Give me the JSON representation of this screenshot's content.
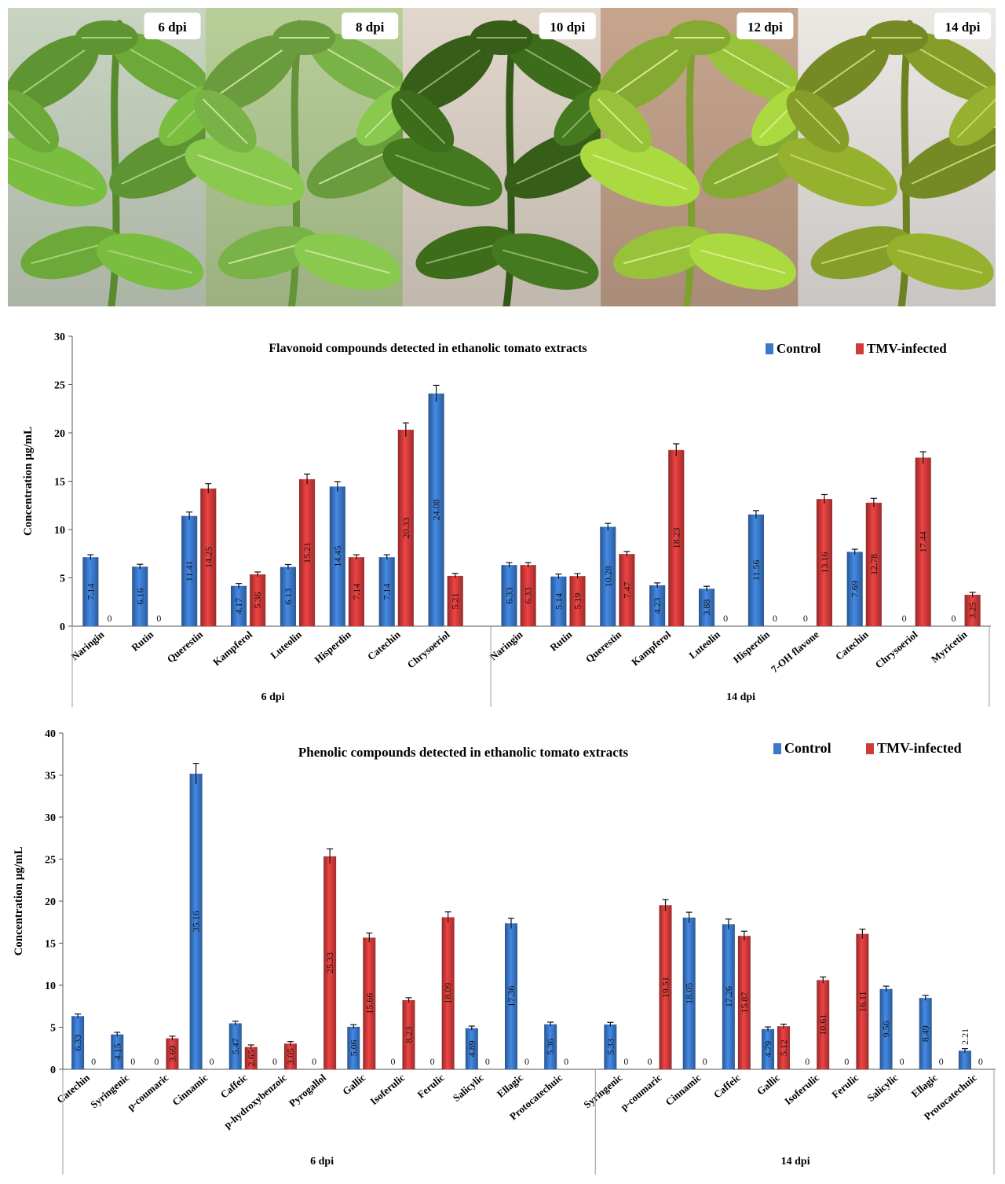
{
  "colors": {
    "control": "#3a78c9",
    "tmv": "#d13a3a"
  },
  "photos": [
    {
      "label": "6 dpi",
      "sky": "#c9d4c2",
      "leaf": "#6fae3a",
      "vein": "#a9d07a"
    },
    {
      "label": "8 dpi",
      "sky": "#b8cf98",
      "leaf": "#7db848",
      "vein": "#c8e29a"
    },
    {
      "label": "10 dpi",
      "sky": "#e2d7cc",
      "leaf": "#3f6f1c",
      "vein": "#8fae6a"
    },
    {
      "label": "12 dpi",
      "sky": "#c7a58d",
      "leaf": "#9cc83b",
      "vein": "#d8eb8a"
    },
    {
      "label": "14 dpi",
      "sky": "#ece8e4",
      "leaf": "#8aa22a",
      "vein": "#c8d56a"
    }
  ],
  "chart_data": [
    {
      "type": "bar",
      "title": "Flavonoid compounds detected in ethanolic tomato extracts",
      "ylabel": "Concentration µg/mL",
      "ylim": [
        0,
        30
      ],
      "yticks": [
        0,
        5,
        10,
        15,
        20,
        25,
        30
      ],
      "legend": {
        "position": "top-right",
        "labels": [
          "Control",
          "TMV-infected"
        ]
      },
      "groups": [
        {
          "label": "6 dpi",
          "categories": [
            "Naringin",
            "Rutin",
            "Querestin",
            "Kampferol",
            "Luteolin",
            "Hisperdin",
            "Catechin",
            "Chrysoeriol"
          ],
          "series": [
            {
              "name": "Control",
              "values": [
                7.14,
                6.16,
                11.41,
                4.17,
                6.13,
                14.45,
                7.14,
                24.08
              ]
            },
            {
              "name": "TMV-infected",
              "values": [
                0,
                0,
                14.25,
                5.36,
                15.21,
                7.14,
                20.33,
                5.21
              ]
            }
          ],
          "value_labels": {
            "Control": [
              "7.14",
              "6.16",
              "11.41",
              "4.17",
              "6.13",
              "14.45",
              "7.14",
              "24.08"
            ],
            "TMV-infected": [
              "0",
              "0",
              "14.25",
              "5.36",
              "15.21",
              "7.14",
              "20.33",
              "5.21"
            ]
          }
        },
        {
          "label": "14 dpi",
          "categories": [
            "Naringin",
            "Rutin",
            "Querestin",
            "Kampferol",
            "Luteolin",
            "Hisperdin",
            "7-OH flavone",
            "Catechin",
            "Chrysoeriol",
            "Myricetin"
          ],
          "series": [
            {
              "name": "Control",
              "values": [
                6.33,
                5.14,
                10.28,
                4.23,
                3.88,
                11.56,
                0,
                7.69,
                0,
                0
              ]
            },
            {
              "name": "TMV-infected",
              "values": [
                6.33,
                5.19,
                7.47,
                18.23,
                0,
                0,
                13.16,
                12.78,
                17.44,
                3.25
              ]
            }
          ],
          "value_labels": {
            "Control": [
              "6.33",
              "5.14",
              "10.28",
              "4.23",
              "3.88",
              "11.56",
              "0",
              "7.69",
              "0",
              "0"
            ],
            "TMV-infected": [
              "6.33",
              "5.19",
              "7.47",
              "18.23",
              "0",
              "0",
              "13.16",
              "12.78",
              "17.44",
              "3.25"
            ]
          }
        }
      ]
    },
    {
      "type": "bar",
      "title": "Phenolic compounds detected in ethanolic tomato extracts",
      "ylabel": "Concentration µg/mL",
      "ylim": [
        0,
        40
      ],
      "yticks": [
        0,
        5,
        10,
        15,
        20,
        25,
        30,
        35,
        40
      ],
      "legend": {
        "position": "top-right",
        "labels": [
          "Control",
          "TMV-infected"
        ]
      },
      "groups": [
        {
          "label": "6 dpi",
          "categories": [
            "Catechin",
            "Syringenic",
            "p-coumaric",
            "Cinnamic",
            "Caffeic",
            "p-hydroxybenzoic",
            "Pyrogallol",
            "Gallic",
            "Isoferulic",
            "Ferulic",
            "Salicylic",
            "Ellagic",
            "Protocatechuic"
          ],
          "series": [
            {
              "name": "Control",
              "values": [
                6.33,
                4.15,
                0,
                35.16,
                5.47,
                0,
                0,
                5.06,
                0,
                0,
                4.89,
                17.36,
                5.36
              ]
            },
            {
              "name": "TMV-infected",
              "values": [
                0,
                0,
                3.69,
                0,
                2.65,
                3.05,
                25.33,
                15.66,
                8.23,
                18.09,
                0,
                0,
                0
              ]
            }
          ],
          "value_labels": {
            "Control": [
              "6.33",
              "4.15",
              "0",
              "35.16",
              "5.47",
              "0",
              "0",
              "5.06",
              "0",
              "0",
              "4.89",
              "17.36",
              "5.36"
            ],
            "TMV-infected": [
              "0",
              "0",
              "3.69",
              "0",
              "2.65",
              "3.05",
              "25.33",
              "15.66",
              "8.23",
              "18.09",
              "0",
              "0",
              "0"
            ]
          }
        },
        {
          "label": "14 dpi",
          "categories": [
            "Syringenic",
            "p-coumaric",
            "Cinnamic",
            "Caffeic",
            "Gallic",
            "Isoferulic",
            "Ferulic",
            "Salicylic",
            "Ellagic",
            "Protocatechuic"
          ],
          "series": [
            {
              "name": "Control",
              "values": [
                5.33,
                0,
                18.05,
                17.26,
                4.79,
                0,
                0,
                9.56,
                8.49,
                2.21
              ]
            },
            {
              "name": "TMV-infected",
              "values": [
                0,
                19.51,
                0,
                15.87,
                5.12,
                10.61,
                16.11,
                0,
                0,
                0
              ]
            }
          ],
          "value_labels": {
            "Control": [
              "5.33",
              "0",
              "18.05",
              "17.26",
              "4.79",
              "0",
              "0",
              "9.56",
              "8.49",
              "2.21"
            ],
            "TMV-infected": [
              "0",
              "19.51",
              "0",
              "15.87",
              "5.12",
              "10.61",
              "16.11",
              "0",
              "0",
              "0"
            ]
          }
        }
      ]
    }
  ]
}
